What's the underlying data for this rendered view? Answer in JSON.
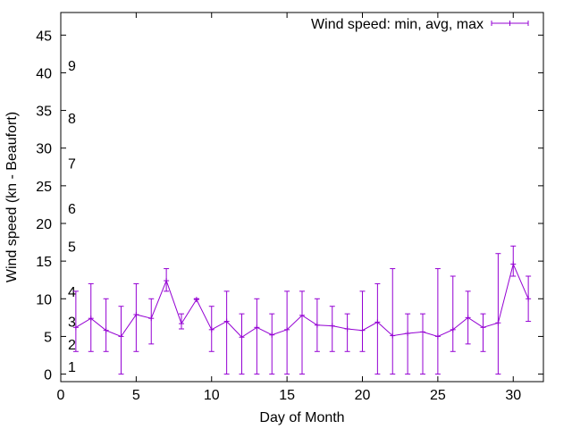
{
  "chart_data": {
    "type": "line",
    "xlabel": "Day of Month",
    "ylabel": "Wind speed (kn - Beaufort)",
    "xlim": [
      0,
      32
    ],
    "ylim": [
      -1,
      48
    ],
    "xticks": [
      0,
      5,
      10,
      15,
      20,
      25,
      30
    ],
    "yticks": [
      0,
      5,
      10,
      15,
      20,
      25,
      30,
      35,
      40,
      45
    ],
    "grid": false,
    "legend_position": "top-right",
    "series": [
      {
        "name": "Wind speed: min, avg, max",
        "color": "#9400d3",
        "style": "line with error bars",
        "x": [
          1,
          2,
          3,
          4,
          5,
          6,
          7,
          8,
          9,
          10,
          11,
          12,
          13,
          14,
          15,
          16,
          17,
          18,
          19,
          20,
          21,
          22,
          23,
          24,
          25,
          26,
          27,
          28,
          29,
          30,
          31
        ],
        "y": [
          6.2,
          7.4,
          5.8,
          5.0,
          7.9,
          7.4,
          12.4,
          6.7,
          9.9,
          5.9,
          7.0,
          4.9,
          6.2,
          5.2,
          5.9,
          7.8,
          6.5,
          6.4,
          6.0,
          5.8,
          6.9,
          5.1,
          5.4,
          5.6,
          5.0,
          5.9,
          7.5,
          6.2,
          6.8,
          14.6,
          10.0
        ],
        "ymin": [
          3,
          3,
          3,
          0,
          3,
          4,
          11,
          6,
          10,
          3,
          0,
          0,
          0,
          0,
          0,
          0,
          3,
          3,
          3,
          3,
          0,
          0,
          0,
          0,
          0,
          3,
          4,
          3,
          0,
          13,
          7
        ],
        "ymax": [
          11,
          12,
          10,
          9,
          12,
          10,
          14,
          8,
          10,
          9,
          11,
          8,
          10,
          8,
          11,
          11,
          10,
          9,
          8,
          11,
          12,
          14,
          8,
          8,
          14,
          13,
          11,
          8,
          16,
          17,
          13
        ]
      }
    ],
    "annotations": [
      {
        "text": "1",
        "y": 1
      },
      {
        "text": "2",
        "y": 4
      },
      {
        "text": "3",
        "y": 7
      },
      {
        "text": "4",
        "y": 11
      },
      {
        "text": "5",
        "y": 17
      },
      {
        "text": "6",
        "y": 22
      },
      {
        "text": "7",
        "y": 28
      },
      {
        "text": "8",
        "y": 34
      },
      {
        "text": "9",
        "y": 41
      }
    ]
  }
}
